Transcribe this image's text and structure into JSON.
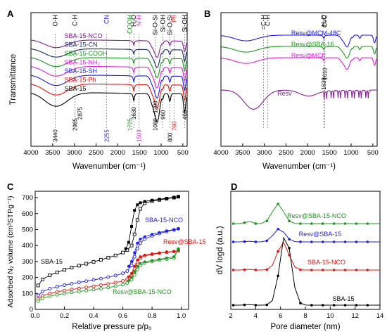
{
  "colors": {
    "black": "#000000",
    "red": "#e8120c",
    "blue": "#1c1cf0",
    "green": "#1a9a1a",
    "magenta": "#e41ce4",
    "purple": "#8a1a9a",
    "navy": "#1a2a6a"
  },
  "chart_data": [
    {
      "panel": "A",
      "type": "line",
      "xlabel": "Wavenumber (cm⁻¹)",
      "ylabel": "Transmittance",
      "xlim": [
        4000,
        400
      ],
      "x_reversed": true,
      "x_ticks": [
        "4000",
        "3500",
        "3000",
        "2500",
        "2000",
        "1500",
        "1000",
        "500"
      ],
      "series": [
        {
          "name": "SBA-15-NCO",
          "color": "#8a1a9a"
        },
        {
          "name": "SBA-15-CN",
          "color": "#1a2a6a"
        },
        {
          "name": "SBA-15-COOH",
          "color": "#1a9a1a"
        },
        {
          "name": "SBA-15-NH₂",
          "color": "#e41ce4"
        },
        {
          "name": "SBA-15-SH",
          "color": "#1c1cf0"
        },
        {
          "name": "SBA-15-Ph",
          "color": "#e8120c"
        },
        {
          "name": "SBA-15",
          "color": "#000000"
        }
      ],
      "top_labels": [
        {
          "text": "O-H",
          "x": 3440,
          "color": "#000000"
        },
        {
          "text": "C-H",
          "x": 2990,
          "color": "#000000"
        },
        {
          "text": "CN",
          "x": 2255,
          "color": "#1c1cf0"
        },
        {
          "text": "COOH",
          "x": 1725,
          "color": "#1a9a1a"
        },
        {
          "text": "H₂O",
          "x": 1630,
          "color": "#000000"
        },
        {
          "text": "N-H",
          "x": 1508,
          "color": "#e41ce4"
        },
        {
          "text": "Si-O-Si",
          "x": 1140,
          "color": "#000000"
        },
        {
          "text": "Si-OH",
          "x": 960,
          "color": "#000000"
        },
        {
          "text": "Si-O-Si",
          "x": 800,
          "color": "#000000"
        },
        {
          "text": "Ph",
          "x": 700,
          "color": "#e8120c"
        },
        {
          "text": "Si-OH",
          "x": 460,
          "color": "#000000"
        }
      ],
      "annotations": [
        {
          "text": "3440",
          "x": 3440,
          "color": "#000000"
        },
        {
          "text": "2985",
          "x": 2985,
          "color": "#000000"
        },
        {
          "text": "2875",
          "x": 2875,
          "color": "#000000"
        },
        {
          "text": "2255",
          "x": 2255,
          "color": "#1c1cf0"
        },
        {
          "text": "1725",
          "x": 1725,
          "color": "#1a9a1a"
        },
        {
          "text": "1630",
          "x": 1630,
          "color": "#000000"
        },
        {
          "text": "1508",
          "x": 1508,
          "color": "#e41ce4"
        },
        {
          "text": "1080 - 1200",
          "x": 1140,
          "color": "#000000"
        },
        {
          "text": "960",
          "x": 960,
          "color": "#000000"
        },
        {
          "text": "800",
          "x": 800,
          "color": "#000000"
        },
        {
          "text": "700",
          "x": 700,
          "color": "#e8120c"
        },
        {
          "text": "460",
          "x": 460,
          "color": "#000000"
        }
      ]
    },
    {
      "panel": "B",
      "type": "line",
      "xlabel": "Wavenumber (cm⁻¹)",
      "ylabel": "",
      "xlim": [
        4000,
        400
      ],
      "x_reversed": true,
      "x_ticks": [
        "4000",
        "3500",
        "3000",
        "2500",
        "2000",
        "1500",
        "1000",
        "500"
      ],
      "series": [
        {
          "name": "Resv@MCM-48C",
          "color": "#1c1cf0"
        },
        {
          "name": "Resv@SBA-16",
          "color": "#1a9a1a"
        },
        {
          "name": "Resv@MCF",
          "color": "#e41ce4"
        },
        {
          "name": "Resv",
          "color": "#8a1a9a"
        }
      ],
      "top_labels": [
        {
          "text": "=C-H",
          "x": 3020,
          "color": "#000000"
        },
        {
          "text": "C-H",
          "x": 2920,
          "color": "#000000"
        },
        {
          "text": "H₂O",
          "x": 1630,
          "color": "#000000"
        },
        {
          "text": "C=C",
          "x": 1610,
          "color": "#000000"
        }
      ],
      "annotations": [
        {
          "text": "1630",
          "x": 1630,
          "color": "#000000"
        },
        {
          "text": "1610",
          "x": 1610,
          "color": "#000000"
        }
      ]
    },
    {
      "panel": "C",
      "type": "scatter",
      "xlabel": "Relative pressure p/p₀",
      "ylabel": "Adsorbed N₂ volume (cm³STPg⁻¹)",
      "xlim": [
        0,
        1.05
      ],
      "ylim": [
        0,
        740
      ],
      "x_ticks": [
        0.0,
        0.2,
        0.4,
        0.6,
        0.8,
        1.0
      ],
      "y_ticks": [
        0,
        100,
        200,
        300,
        400,
        500,
        600,
        700
      ],
      "series": [
        {
          "name": "SBA-15",
          "color": "#000000",
          "adsorption": [
            [
              0.02,
              150
            ],
            [
              0.05,
              188
            ],
            [
              0.1,
              214
            ],
            [
              0.15,
              232
            ],
            [
              0.2,
              248
            ],
            [
              0.25,
              262
            ],
            [
              0.3,
              274
            ],
            [
              0.35,
              286
            ],
            [
              0.4,
              298
            ],
            [
              0.45,
              311
            ],
            [
              0.5,
              324
            ],
            [
              0.55,
              338
            ],
            [
              0.6,
              356
            ],
            [
              0.63,
              372
            ],
            [
              0.66,
              400
            ],
            [
              0.68,
              470
            ],
            [
              0.7,
              560
            ],
            [
              0.72,
              630
            ],
            [
              0.75,
              665
            ],
            [
              0.8,
              678
            ],
            [
              0.85,
              686
            ],
            [
              0.9,
              693
            ],
            [
              0.95,
              700
            ],
            [
              0.98,
              706
            ]
          ],
          "desorption": [
            [
              0.98,
              706
            ],
            [
              0.95,
              702
            ],
            [
              0.9,
              696
            ],
            [
              0.85,
              690
            ],
            [
              0.8,
              684
            ],
            [
              0.75,
              676
            ],
            [
              0.72,
              668
            ],
            [
              0.7,
              655
            ],
            [
              0.68,
              620
            ],
            [
              0.66,
              520
            ],
            [
              0.64,
              420
            ],
            [
              0.62,
              380
            ]
          ]
        },
        {
          "name": "SBA-15-NCO",
          "color": "#1c1cf0",
          "adsorption": [
            [
              0.02,
              88
            ],
            [
              0.05,
              112
            ],
            [
              0.1,
              130
            ],
            [
              0.15,
              142
            ],
            [
              0.2,
              152
            ],
            [
              0.25,
              161
            ],
            [
              0.3,
              169
            ],
            [
              0.35,
              177
            ],
            [
              0.4,
              185
            ],
            [
              0.45,
              193
            ],
            [
              0.5,
              202
            ],
            [
              0.55,
              212
            ],
            [
              0.6,
              226
            ],
            [
              0.63,
              240
            ],
            [
              0.66,
              275
            ],
            [
              0.68,
              330
            ],
            [
              0.7,
              380
            ],
            [
              0.72,
              415
            ],
            [
              0.75,
              440
            ],
            [
              0.8,
              460
            ],
            [
              0.85,
              475
            ],
            [
              0.9,
              488
            ],
            [
              0.95,
              498
            ],
            [
              0.98,
              505
            ]
          ],
          "desorption": [
            [
              0.98,
              505
            ],
            [
              0.95,
              500
            ],
            [
              0.9,
              492
            ],
            [
              0.85,
              482
            ],
            [
              0.8,
              470
            ],
            [
              0.75,
              455
            ],
            [
              0.72,
              440
            ],
            [
              0.7,
              415
            ],
            [
              0.68,
              355
            ],
            [
              0.66,
              300
            ],
            [
              0.64,
              270
            ]
          ]
        },
        {
          "name": "Resv@SBA-15",
          "color": "#e8120c",
          "adsorption": [
            [
              0.02,
              65
            ],
            [
              0.05,
              85
            ],
            [
              0.1,
              100
            ],
            [
              0.15,
              110
            ],
            [
              0.2,
              118
            ],
            [
              0.25,
              125
            ],
            [
              0.3,
              131
            ],
            [
              0.35,
              138
            ],
            [
              0.4,
              145
            ],
            [
              0.45,
              152
            ],
            [
              0.5,
              160
            ],
            [
              0.55,
              168
            ],
            [
              0.6,
              178
            ],
            [
              0.63,
              190
            ],
            [
              0.66,
              215
            ],
            [
              0.68,
              255
            ],
            [
              0.7,
              295
            ],
            [
              0.72,
              320
            ],
            [
              0.75,
              335
            ],
            [
              0.8,
              345
            ],
            [
              0.85,
              352
            ],
            [
              0.9,
              358
            ],
            [
              0.95,
              362
            ],
            [
              0.98,
              368
            ]
          ],
          "desorption": [
            [
              0.98,
              368
            ],
            [
              0.95,
              364
            ],
            [
              0.9,
              360
            ],
            [
              0.85,
              354
            ],
            [
              0.8,
              348
            ],
            [
              0.75,
              340
            ],
            [
              0.72,
              330
            ],
            [
              0.7,
              310
            ],
            [
              0.68,
              270
            ],
            [
              0.66,
              225
            ],
            [
              0.64,
              205
            ]
          ]
        },
        {
          "name": "Resv@SBA-15-NCO",
          "color": "#1a9a1a",
          "adsorption": [
            [
              0.02,
              52
            ],
            [
              0.05,
              70
            ],
            [
              0.1,
              83
            ],
            [
              0.15,
              92
            ],
            [
              0.2,
              99
            ],
            [
              0.25,
              106
            ],
            [
              0.3,
              112
            ],
            [
              0.35,
              118
            ],
            [
              0.4,
              124
            ],
            [
              0.45,
              130
            ],
            [
              0.5,
              137
            ],
            [
              0.55,
              145
            ],
            [
              0.6,
              155
            ],
            [
              0.63,
              165
            ],
            [
              0.66,
              185
            ],
            [
              0.68,
              215
            ],
            [
              0.7,
              250
            ],
            [
              0.72,
              275
            ],
            [
              0.75,
              290
            ],
            [
              0.8,
              300
            ],
            [
              0.85,
              308
            ],
            [
              0.9,
              315
            ],
            [
              0.95,
              322
            ],
            [
              0.98,
              378
            ]
          ],
          "desorption": [
            [
              0.98,
              378
            ],
            [
              0.95,
              330
            ],
            [
              0.9,
              322
            ],
            [
              0.85,
              314
            ],
            [
              0.8,
              306
            ],
            [
              0.75,
              298
            ],
            [
              0.72,
              288
            ],
            [
              0.7,
              270
            ],
            [
              0.68,
              235
            ],
            [
              0.66,
              200
            ],
            [
              0.64,
              180
            ]
          ]
        }
      ]
    },
    {
      "panel": "D",
      "type": "line",
      "xlabel": "Pore diameter (nm)",
      "ylabel": "dV logd (a.u.)",
      "xlim": [
        2,
        14
      ],
      "x_ticks": [
        2,
        4,
        6,
        8,
        10,
        12,
        14
      ],
      "series": [
        {
          "name": "Resv@SBA-15-NCO",
          "color": "#1a9a1a",
          "offset": 3,
          "peak": 5.8,
          "height": 1.0
        },
        {
          "name": "Resv@SBA-15",
          "color": "#1c1cf0",
          "offset": 2,
          "peak": 5.9,
          "height": 0.85
        },
        {
          "name": "SBA-15-NCO",
          "color": "#e8120c",
          "offset": 1,
          "peak": 6.2,
          "height": 1.1
        },
        {
          "name": "SBA-15",
          "color": "#000000",
          "offset": 0,
          "peak": 6.4,
          "height": 1.3
        }
      ]
    }
  ]
}
